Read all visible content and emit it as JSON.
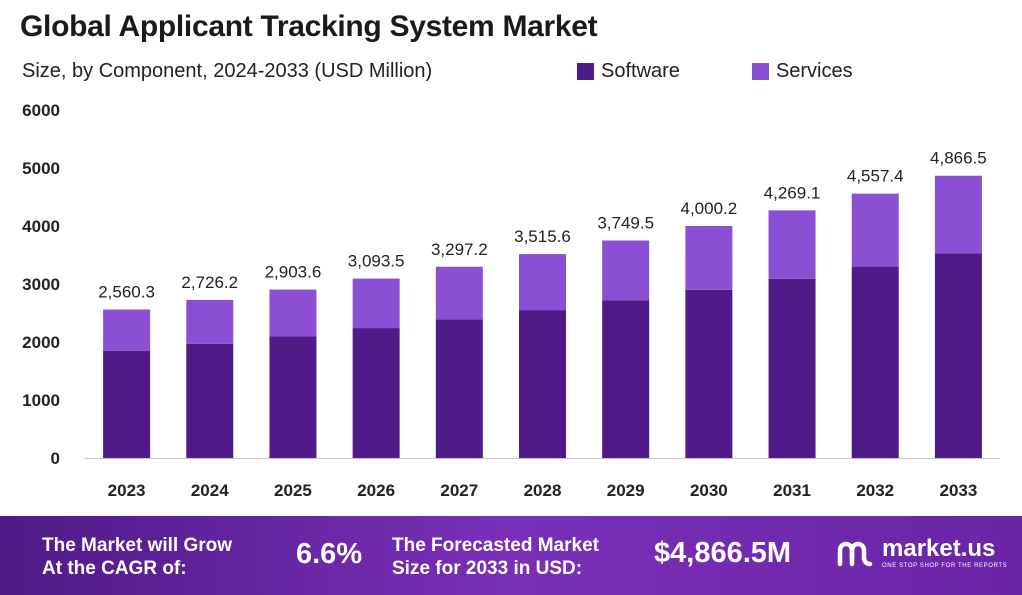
{
  "title": "Global Applicant Tracking System Market",
  "subtitle": "Size, by Component, 2024-2033 (USD Million)",
  "colors": {
    "software": "#501a89",
    "services": "#8a4fd3",
    "footer": "#6a24a6"
  },
  "chart_data": {
    "type": "bar",
    "stacked": true,
    "categories": [
      "2023",
      "2024",
      "2025",
      "2026",
      "2027",
      "2028",
      "2029",
      "2030",
      "2031",
      "2032",
      "2033"
    ],
    "series": [
      {
        "name": "Software",
        "color": "#501a89",
        "values": [
          1850,
          1970,
          2100,
          2240,
          2390,
          2550,
          2720,
          2900,
          3090,
          3300,
          3530
        ]
      },
      {
        "name": "Services",
        "color": "#8a4fd3",
        "values": [
          710.3,
          756.2,
          803.6,
          853.5,
          907.2,
          965.6,
          1029.5,
          1100.2,
          1179.1,
          1257.4,
          1336.5
        ]
      }
    ],
    "totals_labels": [
      "2,560.3",
      "2,726.2",
      "2,903.6",
      "3,093.5",
      "3,297.2",
      "3,515.6",
      "3,749.5",
      "4,000.2",
      "4,269.1",
      "4,557.4",
      "4,866.5"
    ],
    "totals": [
      2560.3,
      2726.2,
      2903.6,
      3093.5,
      3297.2,
      3515.6,
      3749.5,
      4000.2,
      4269.1,
      4557.4,
      4866.5
    ],
    "yticks": [
      0,
      1000,
      2000,
      3000,
      4000,
      5000,
      6000
    ],
    "ylim": [
      0,
      6000
    ],
    "legend_position": "top-right",
    "grid": false
  },
  "footer": {
    "cagr_label_1": "The Market will Grow",
    "cagr_label_2": "At the CAGR of:",
    "cagr_value": "6.6%",
    "forecast_label_1": "The Forecasted Market",
    "forecast_label_2": "Size for 2033 in USD:",
    "forecast_value": "$4,866.5M",
    "brand_name": "market.us",
    "brand_tagline": "ONE STOP SHOP FOR THE REPORTS"
  }
}
